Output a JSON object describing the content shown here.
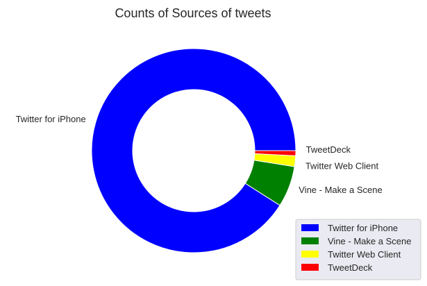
{
  "chart_data": {
    "type": "pie",
    "style": "donut",
    "title": "Counts of Sources of tweets",
    "labels": [
      "Twitter for iPhone",
      "Vine - Make a Scene",
      "Twitter Web Client",
      "TweetDeck"
    ],
    "values": [
      91.0,
      6.5,
      1.7,
      0.8
    ],
    "colors": [
      "#0000ff",
      "#008000",
      "#ffff00",
      "#ff0000"
    ],
    "legend_position": "lower-right"
  }
}
